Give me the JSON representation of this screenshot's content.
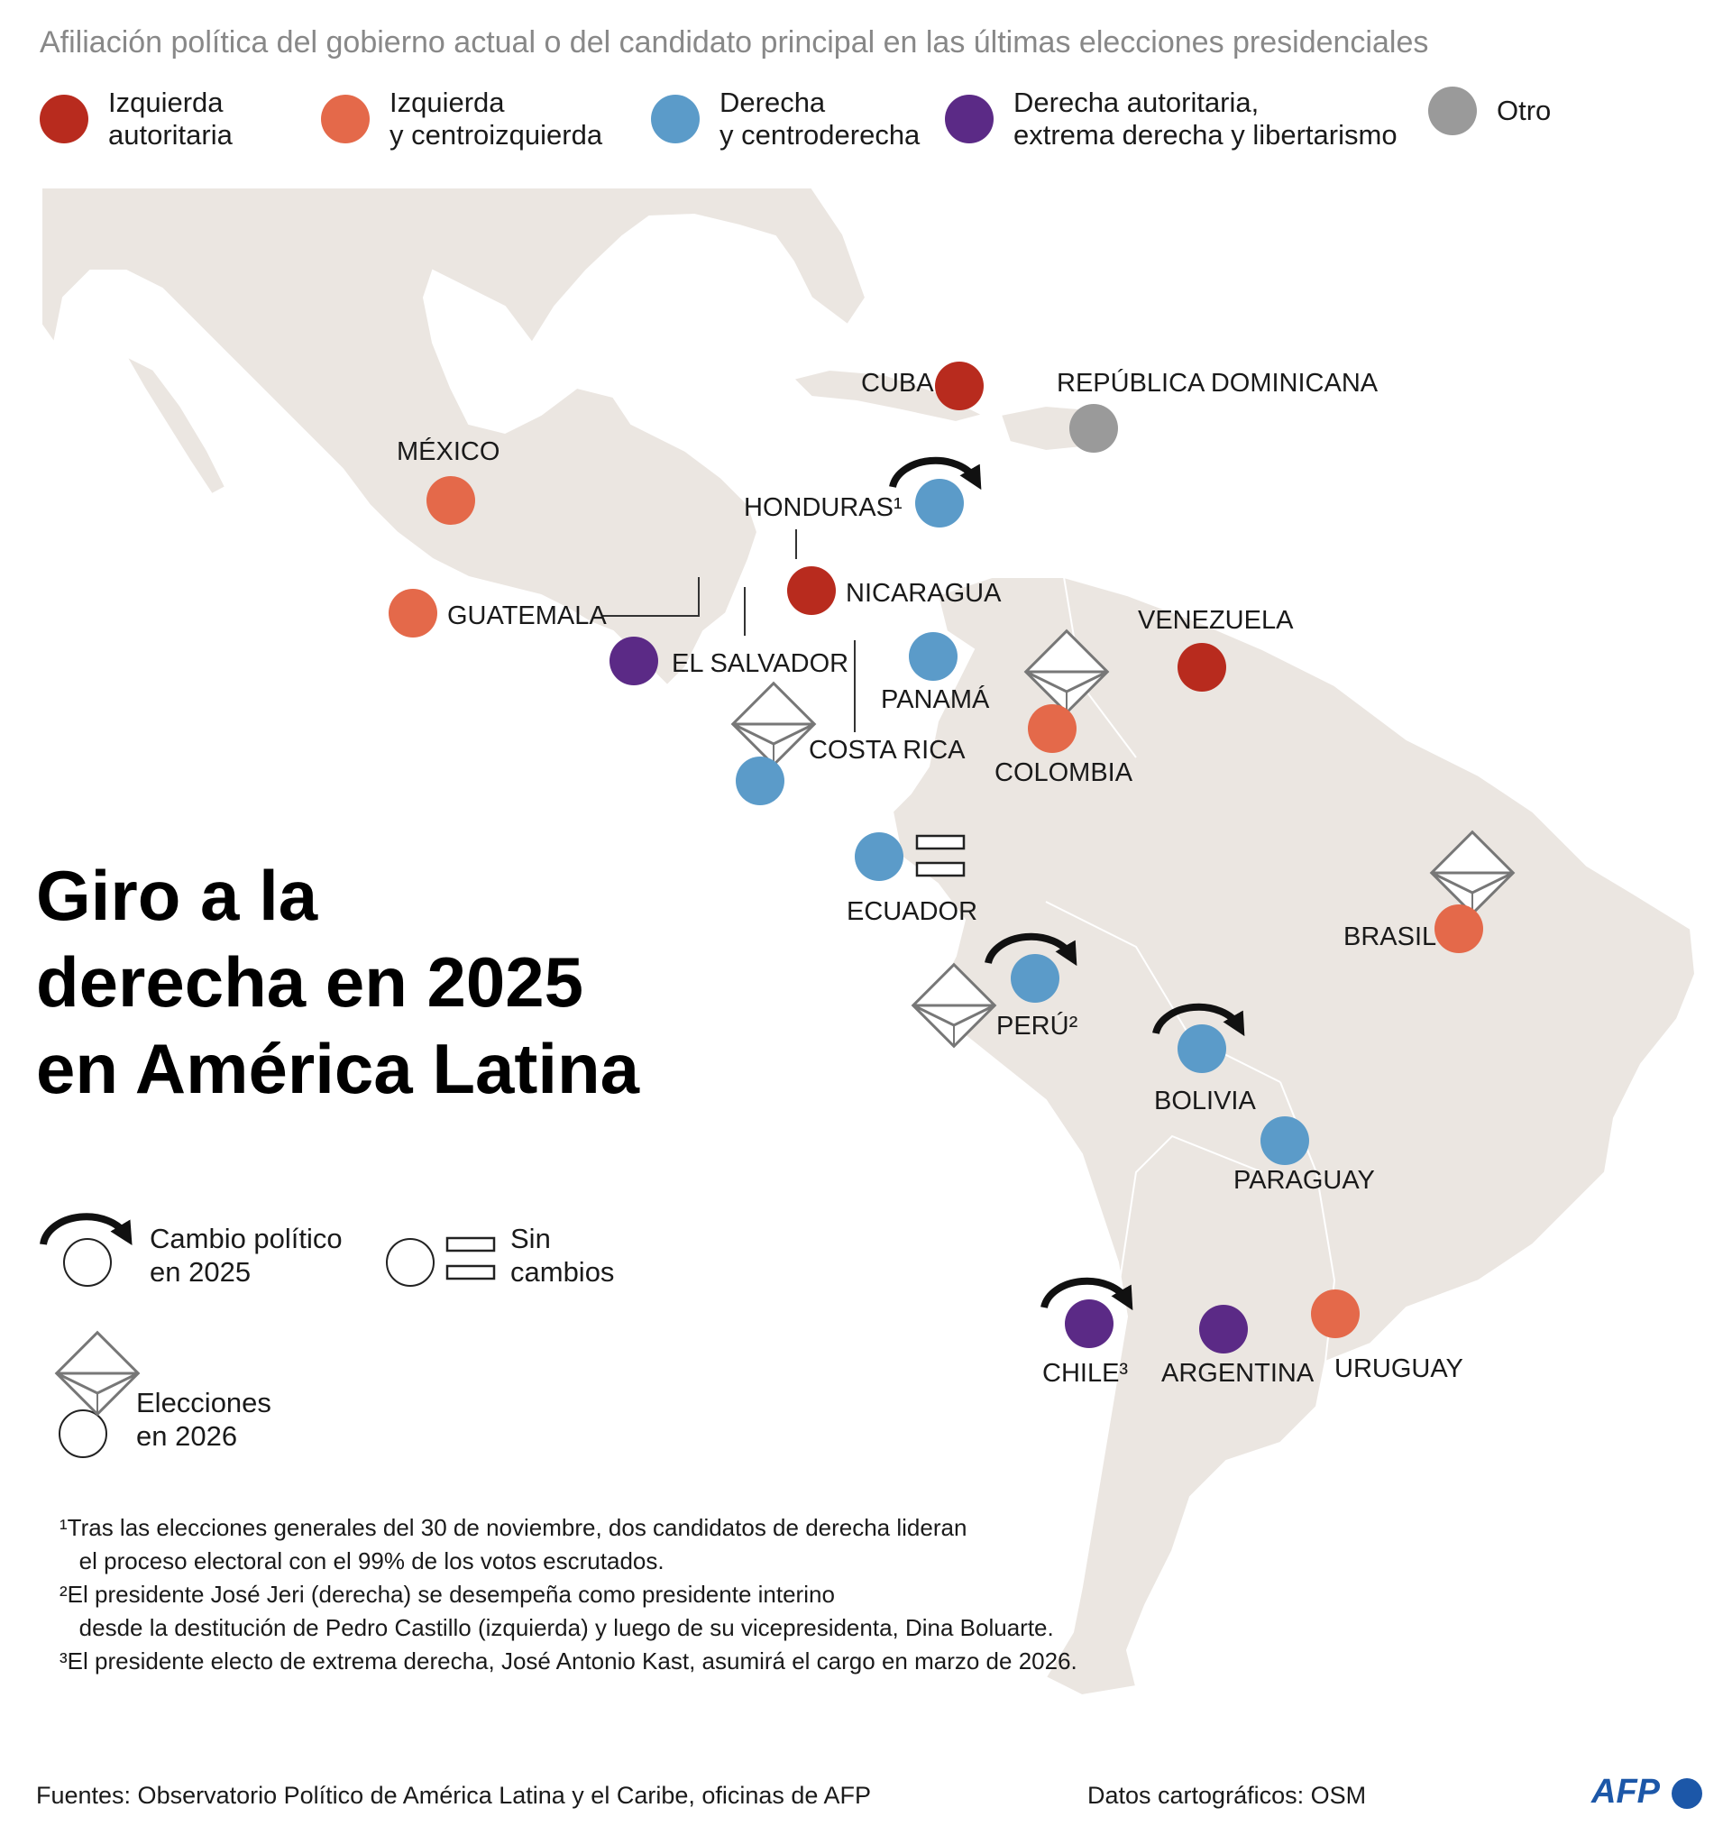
{
  "subtitle": "Afiliación política del gobierno actual o del candidato principal en las últimas elecciones presidenciales",
  "colors": {
    "izquierda_autoritaria": "#b82b1e",
    "izquierda_centroizquierda": "#e4694a",
    "derecha_centroderecha": "#5b9bc9",
    "derecha_autoritaria": "#5b2a86",
    "otro": "#9a9a9a",
    "land": "#ebe6e1",
    "border": "#ffffff"
  },
  "legend": [
    {
      "label": "Izquierda\nautoritaria",
      "color": "#b82b1e"
    },
    {
      "label": "Izquierda\ny centroizquierda",
      "color": "#e4694a"
    },
    {
      "label": "Derecha\ny centroderecha",
      "color": "#5b9bc9"
    },
    {
      "label": "Derecha autoritaria,\nextrema derecha y libertarismo",
      "color": "#5b2a86"
    },
    {
      "label": "Otro",
      "color": "#9a9a9a"
    }
  ],
  "countries": [
    {
      "name": "CUBA",
      "color": "#b82b1e",
      "marker": ""
    },
    {
      "name": "REPÚBLICA DOMINICANA",
      "color": "#9a9a9a",
      "marker": ""
    },
    {
      "name": "MÉXICO",
      "color": "#e4694a",
      "marker": ""
    },
    {
      "name": "HONDURAS¹",
      "color": "#5b9bc9",
      "marker": "change"
    },
    {
      "name": "NICARAGUA",
      "color": "#b82b1e",
      "marker": ""
    },
    {
      "name": "GUATEMALA",
      "color": "#e4694a",
      "marker": ""
    },
    {
      "name": "EL SALVADOR",
      "color": "#5b2a86",
      "marker": ""
    },
    {
      "name": "PANAMÁ",
      "color": "#5b9bc9",
      "marker": ""
    },
    {
      "name": "COSTA RICA",
      "color": "#5b9bc9",
      "marker": "election"
    },
    {
      "name": "VENEZUELA",
      "color": "#b82b1e",
      "marker": ""
    },
    {
      "name": "COLOMBIA",
      "color": "#e4694a",
      "marker": "election"
    },
    {
      "name": "ECUADOR",
      "color": "#5b9bc9",
      "marker": "nochange"
    },
    {
      "name": "BRASIL",
      "color": "#e4694a",
      "marker": "election"
    },
    {
      "name": "PERÚ²",
      "color": "#5b9bc9",
      "marker": "change+election"
    },
    {
      "name": "BOLIVIA",
      "color": "#5b9bc9",
      "marker": "change"
    },
    {
      "name": "PARAGUAY",
      "color": "#5b9bc9",
      "marker": ""
    },
    {
      "name": "CHILE³",
      "color": "#5b2a86",
      "marker": "change"
    },
    {
      "name": "ARGENTINA",
      "color": "#5b2a86",
      "marker": ""
    },
    {
      "name": "URUGUAY",
      "color": "#e4694a",
      "marker": ""
    }
  ],
  "title": "Giro a la\nderecha en 2025\nen América Latina",
  "key": {
    "change": "Cambio político\nen 2025",
    "nochange": "Sin\ncambios",
    "election": "Elecciones\nen 2026"
  },
  "notes": [
    "¹Tras las elecciones generales del 30 de noviembre, dos candidatos de derecha lideran",
    "   el proceso electoral con el 99% de los votos escrutados.",
    "²El presidente José Jeri (derecha) se desempeña como presidente interino",
    "   desde la destitución de Pedro Castillo (izquierda) y luego de su vicepresidenta, Dina Boluarte.",
    "",
    "³El presidente electo de extrema derecha, José Antonio Kast, asumirá el cargo en marzo de 2026."
  ],
  "sources": "Fuentes: Observatorio Político de América Latina y el Caribe, oficinas de AFP",
  "map_credit": "Datos cartográficos: OSM",
  "logo": "AFP"
}
